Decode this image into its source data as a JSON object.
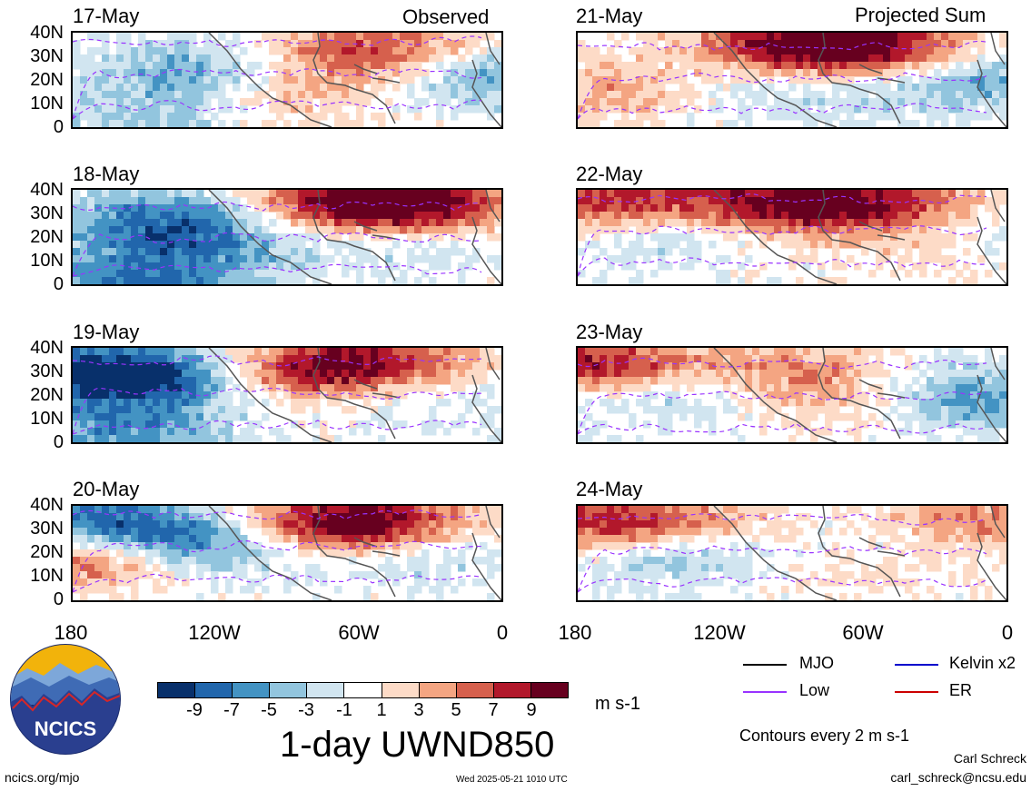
{
  "columns": {
    "left_title": "Observed",
    "right_title": "Projected Sum"
  },
  "rows": [
    {
      "left_date": "17-May",
      "right_date": "21-May"
    },
    {
      "left_date": "18-May",
      "right_date": "22-May"
    },
    {
      "left_date": "19-May",
      "right_date": "23-May"
    },
    {
      "left_date": "20-May",
      "right_date": "24-May"
    }
  ],
  "lat_labels": [
    "40N",
    "30N",
    "20N",
    "10N",
    "0"
  ],
  "lon_labels": [
    "180",
    "120W",
    "60W",
    "0"
  ],
  "colorbar": {
    "ticks": [
      "-9",
      "-7",
      "-5",
      "-3",
      "-1",
      "1",
      "3",
      "5",
      "7",
      "9"
    ],
    "units": "m s-1",
    "colors": [
      "#08306b",
      "#2166ac",
      "#4393c3",
      "#92c5de",
      "#d1e5f0",
      "#ffffff",
      "#fddbc7",
      "#f4a582",
      "#d6604d",
      "#b2182b",
      "#67001f"
    ]
  },
  "plot_title": "1-day UWND850",
  "legend": {
    "items": [
      {
        "label": "MJO",
        "color": "#000000"
      },
      {
        "label": "Kelvin x2",
        "color": "#0000cc"
      },
      {
        "label": "Low",
        "color": "#9933ff"
      },
      {
        "label": "ER",
        "color": "#cc0000"
      }
    ],
    "contours_note": "Contours every 2 m s-1"
  },
  "footer": {
    "logo_text": "NCICS",
    "url": "ncics.org/mjo",
    "timestamp": "Wed 2025-05-21 1010 UTC",
    "author": "Carl Schreck",
    "email": "carl_schreck@ncsu.edu"
  }
}
